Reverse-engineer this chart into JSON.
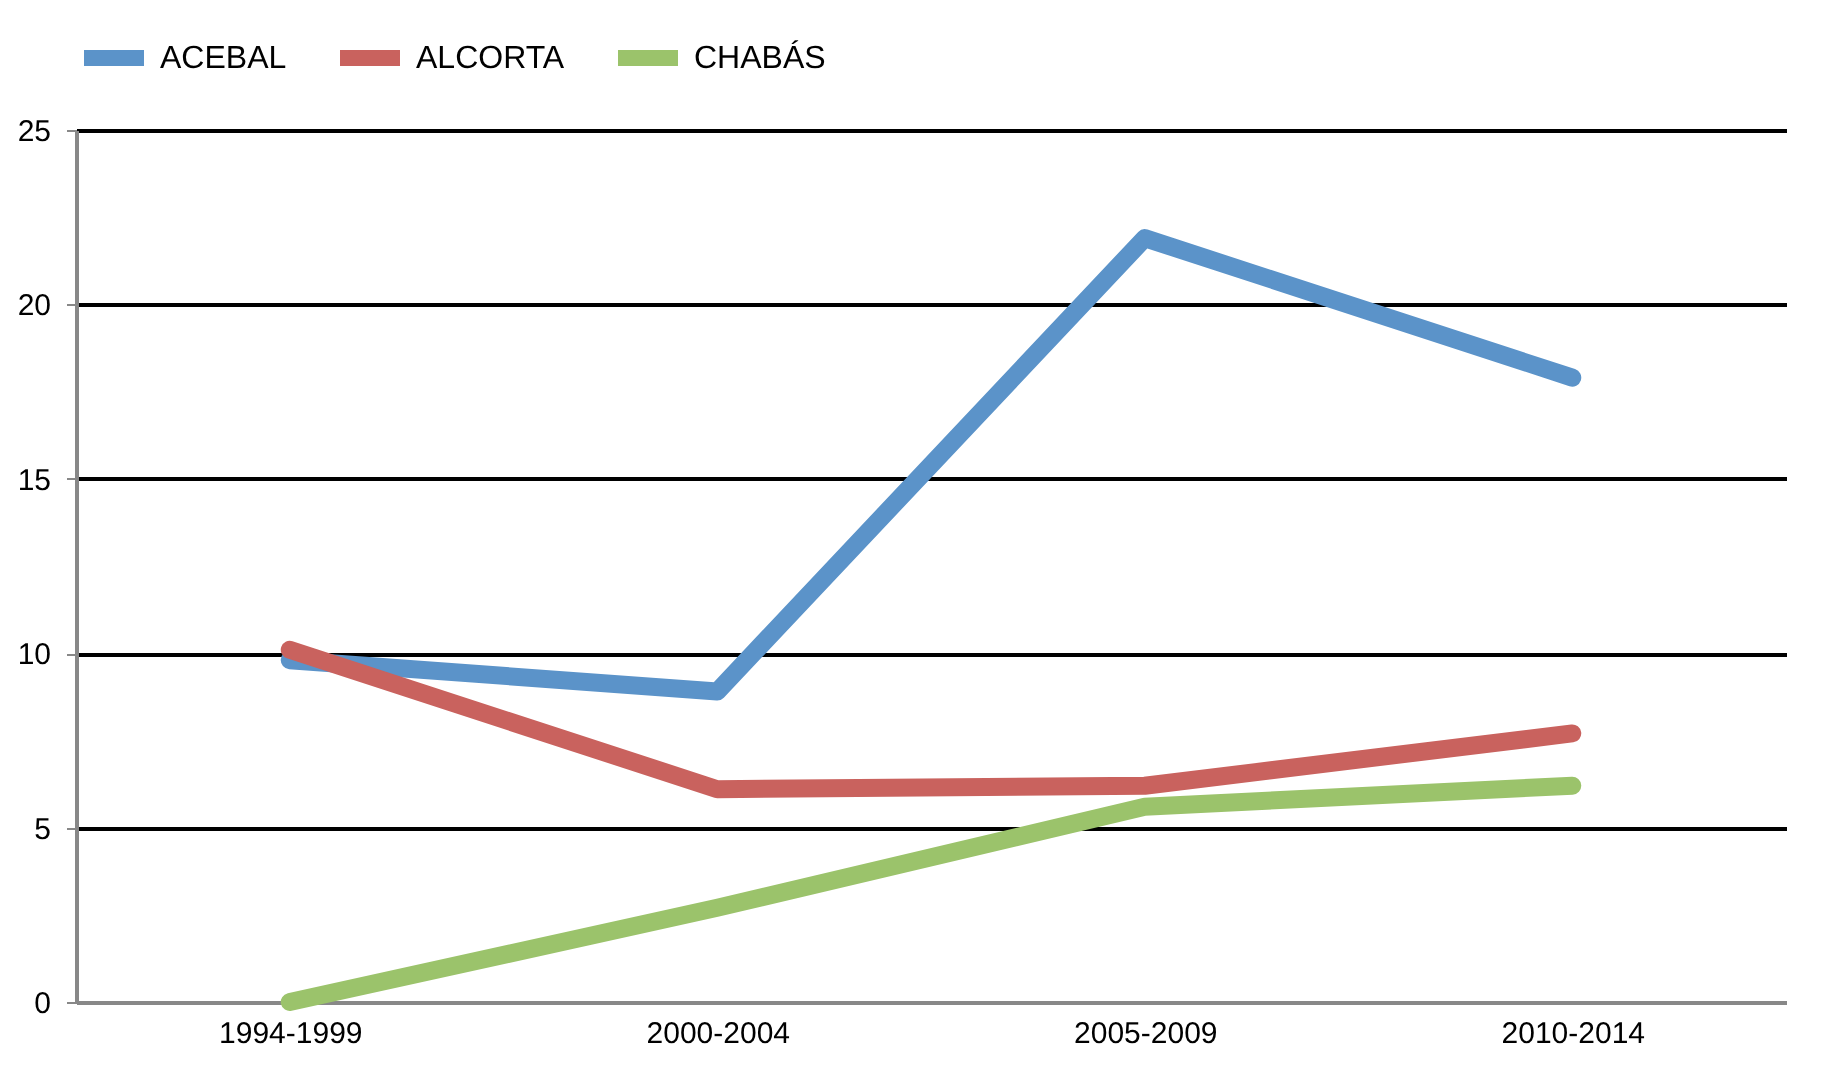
{
  "chart_data": {
    "type": "line",
    "categories": [
      "1994-1999",
      "2000-2004",
      "2005-2009",
      "2010-2014"
    ],
    "series": [
      {
        "name": "ACEBAL",
        "color": "#5b93c9",
        "values": [
          9.8,
          8.9,
          21.9,
          17.9
        ]
      },
      {
        "name": "ALCORTA",
        "color": "#c9625e",
        "values": [
          10.1,
          6.1,
          6.2,
          7.7
        ]
      },
      {
        "name": "CHABÁS",
        "color": "#9bc36b",
        "values": [
          0,
          2.7,
          5.6,
          6.2
        ]
      }
    ],
    "ylim": [
      0,
      25
    ],
    "yticks": [
      0,
      5,
      10,
      15,
      20,
      25
    ],
    "grid": "y",
    "legend": "top",
    "marker": "none",
    "line_style": "solid"
  }
}
